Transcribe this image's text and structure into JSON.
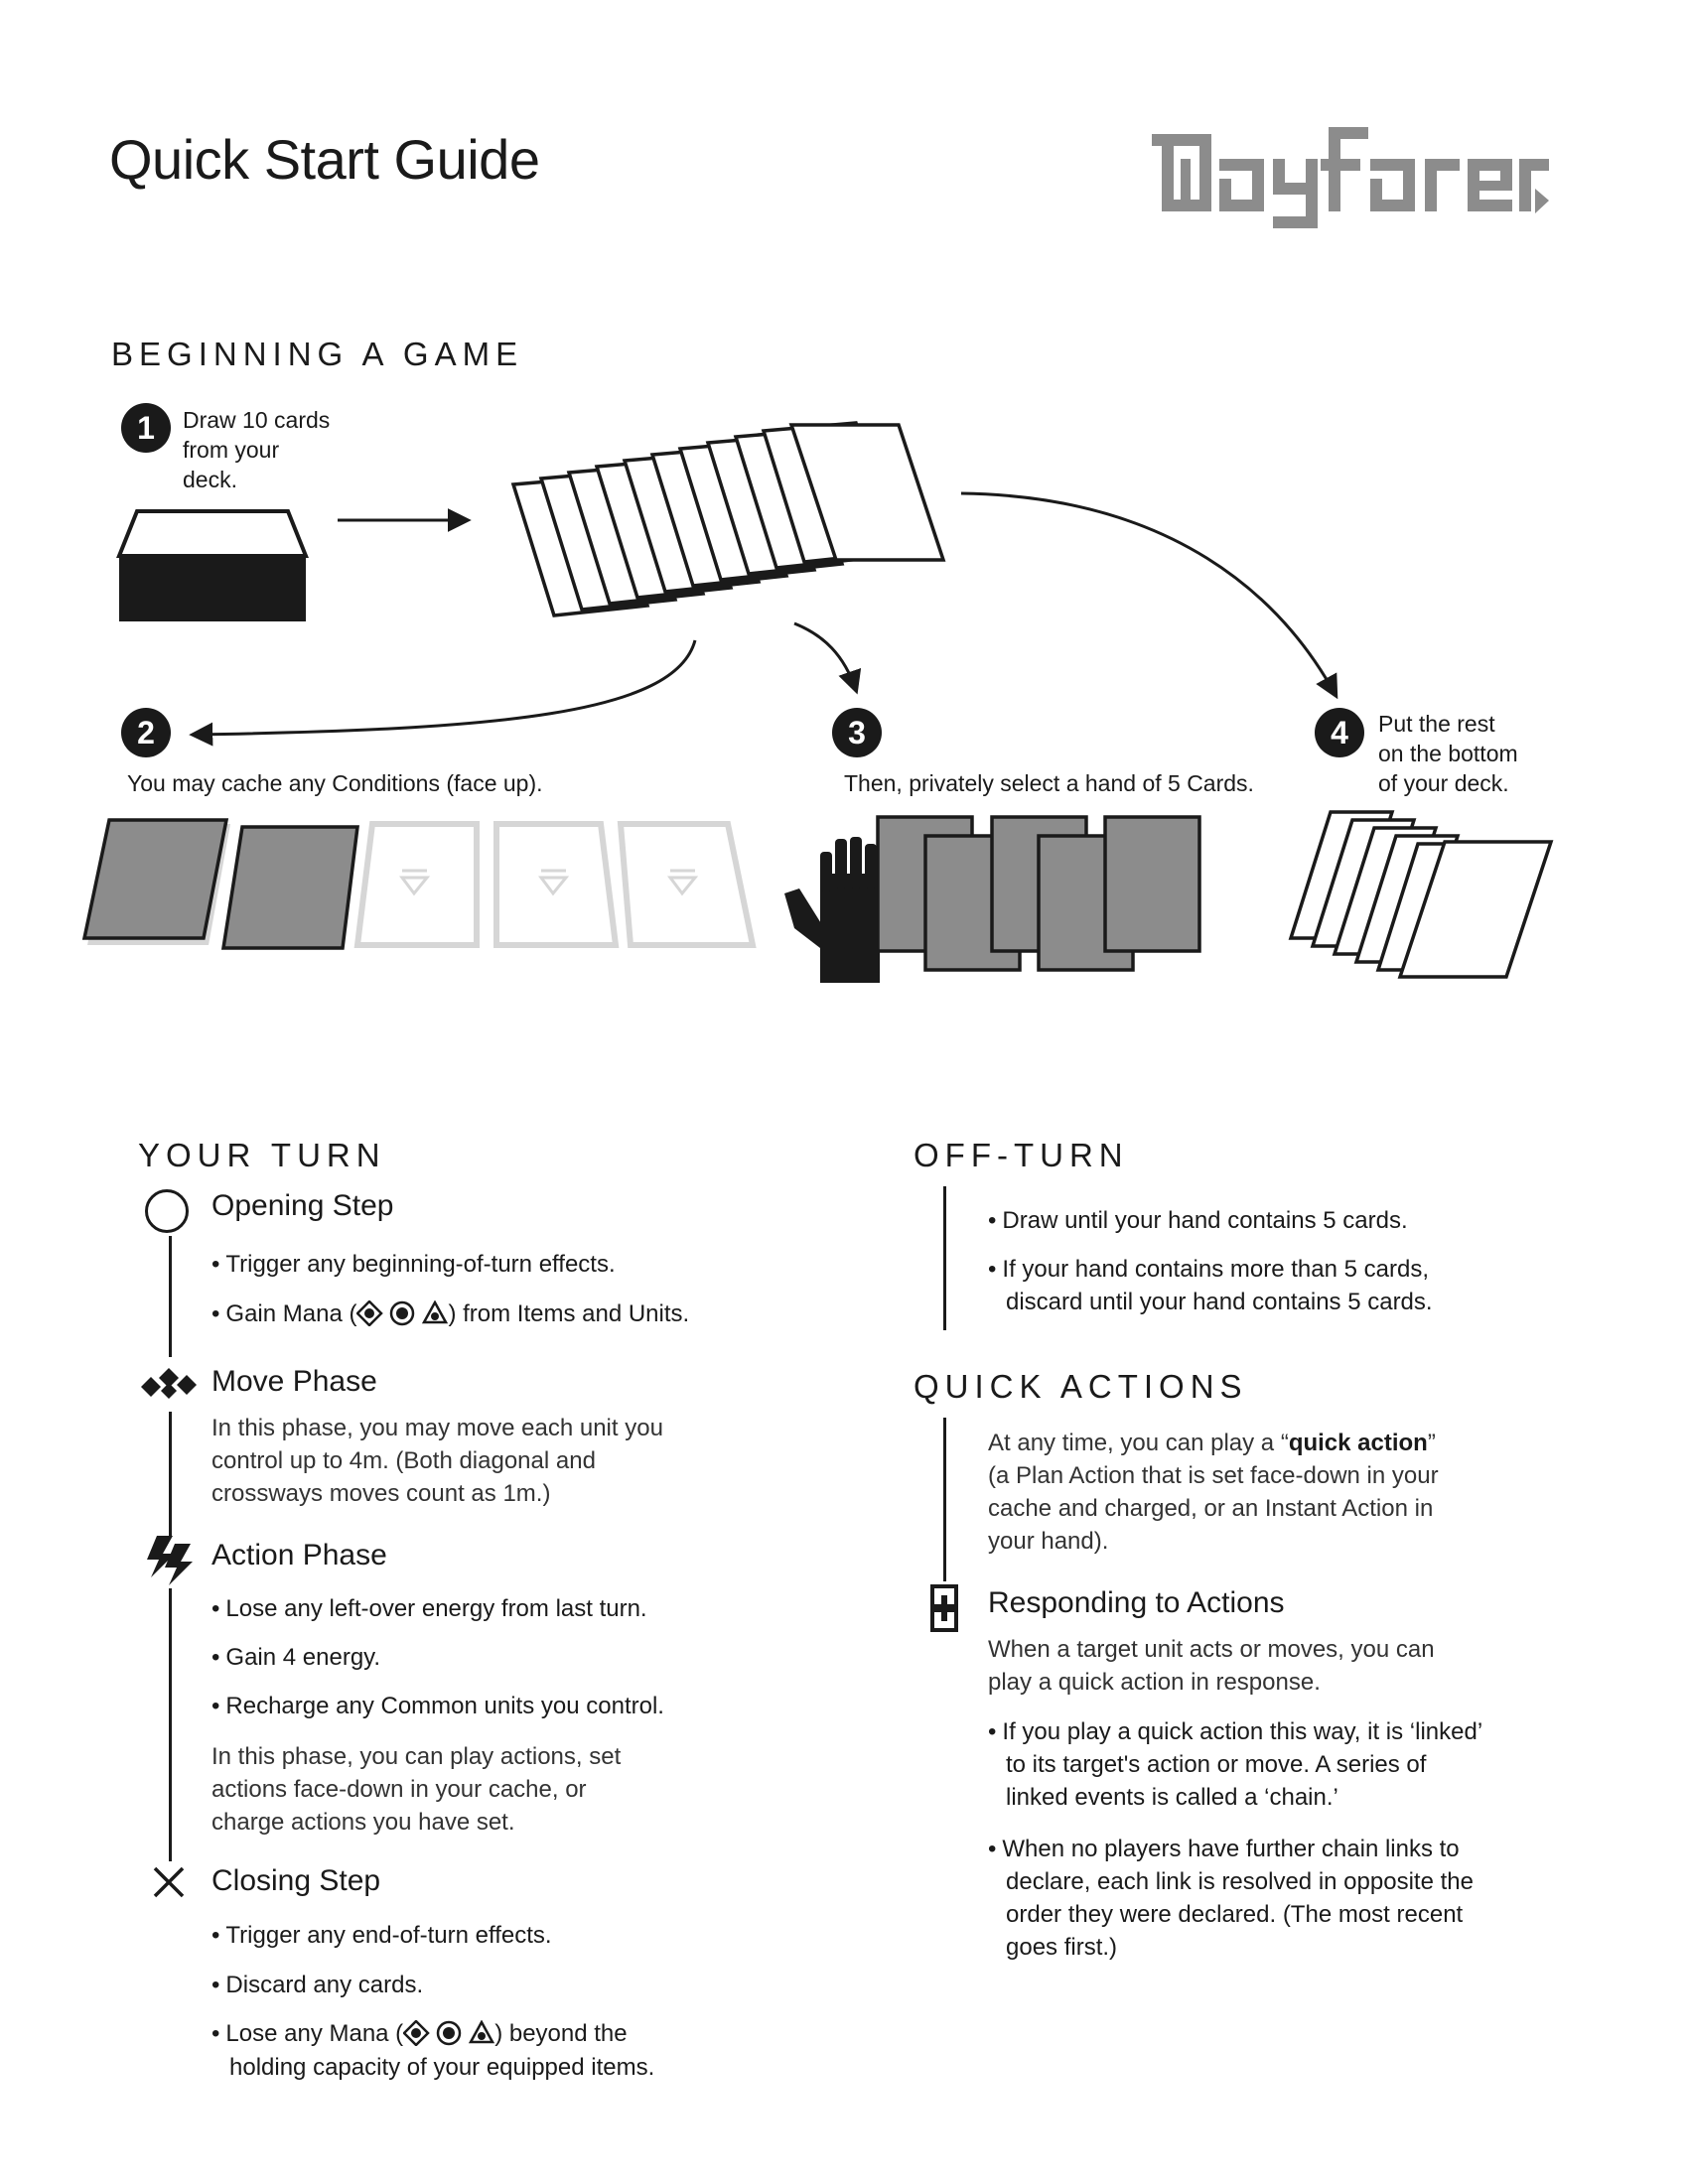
{
  "header": {
    "title": "Quick Start Guide",
    "logo_text": "Wayfarer"
  },
  "beginning": {
    "heading": "BEGINNING A GAME",
    "steps": [
      {
        "num": "1",
        "lines": [
          "Draw 10 cards",
          "from your",
          "deck."
        ]
      },
      {
        "num": "2",
        "lines": [
          "You may cache any Conditions (face up)."
        ]
      },
      {
        "num": "3",
        "lines": [
          "Then, privately select a hand of 5 Cards."
        ]
      },
      {
        "num": "4",
        "lines": [
          "Put the rest",
          "on the bottom",
          "of your deck."
        ]
      }
    ]
  },
  "your_turn": {
    "heading": "YOUR TURN",
    "opening": {
      "label": "Opening Step",
      "bullets": [
        "Trigger any beginning-of-turn effects.",
        "Gain Mana (",
        ") from Items and Units."
      ]
    },
    "move": {
      "label": "Move Phase",
      "para": [
        "In this phase, you may move each unit you",
        "control up to 4m. (Both diagonal and",
        "crossways moves count as 1m.)"
      ]
    },
    "action": {
      "label": "Action Phase",
      "bullets": [
        "Lose any left-over energy from last turn.",
        "Gain 4  energy.",
        "Recharge any Common units you control."
      ],
      "para": [
        "In this phase, you can play actions, set",
        "actions face-down in your cache, or",
        "charge actions you have set."
      ]
    },
    "closing": {
      "label": "Closing Step",
      "bullets": [
        "Trigger any end-of-turn effects.",
        "Discard any cards.",
        "Lose any Mana (",
        ") beyond the",
        "holding capacity of your equipped items."
      ]
    }
  },
  "off_turn": {
    "heading": "OFF-TURN",
    "bullets": [
      "Draw until your hand contains 5 cards.",
      "If your hand contains more than 5 cards,",
      "discard until your hand contains 5 cards."
    ]
  },
  "quick_actions": {
    "heading": "QUICK ACTIONS",
    "para_before": "At any time, you can play a “",
    "para_bold": "quick action",
    "para_after": "”",
    "para": [
      "(a Plan Action that is set face-down in your",
      "cache and charged, or an Instant Action in",
      "your hand)."
    ],
    "responding": {
      "label": "Responding to Actions",
      "para": [
        "When a target unit acts or moves, you can",
        "play a quick action in response."
      ],
      "bullets": [
        [
          "If you play a quick action this way, it is ‘linked’",
          "to its target's action or move. A series of",
          "linked events is called a ‘chain.’"
        ],
        [
          "When no players have further chain links to",
          "declare, each link is resolved in opposite the",
          "order they were declared. (The most recent",
          "goes first.)"
        ]
      ]
    }
  },
  "colors": {
    "ink": "#1a1a1a",
    "grey": "#8c8c8c",
    "light_grey": "#d6d6d6"
  }
}
